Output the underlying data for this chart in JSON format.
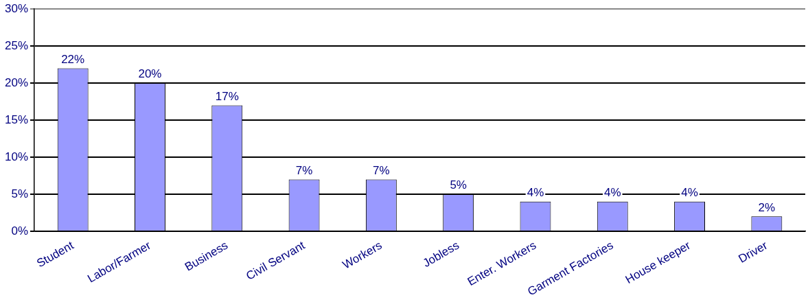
{
  "chart_data": {
    "type": "bar",
    "categories": [
      "Student",
      "Labor/Farmer",
      "Business",
      "Civil Servant",
      "Workers",
      "Jobless",
      "Enter. Workers",
      "Garment Factories",
      "House keeper",
      "Driver"
    ],
    "values": [
      22,
      20,
      17,
      7,
      7,
      5,
      4,
      4,
      4,
      2
    ],
    "color": "#9999ff",
    "value_labels": [
      "22%",
      "20%",
      "17%",
      "7%",
      "7%",
      "5%",
      "4%",
      "4%",
      "4%",
      "2%"
    ],
    "ylim": [
      0,
      30
    ],
    "yticks": [
      {
        "value": 0,
        "label": "0%"
      },
      {
        "value": 5,
        "label": "5%"
      },
      {
        "value": 10,
        "label": "10%"
      },
      {
        "value": 15,
        "label": "15%"
      },
      {
        "value": 20,
        "label": "20%"
      },
      {
        "value": 25,
        "label": "25%"
      },
      {
        "value": 30,
        "label": "30%"
      }
    ],
    "grid": "y",
    "legend": false
  }
}
